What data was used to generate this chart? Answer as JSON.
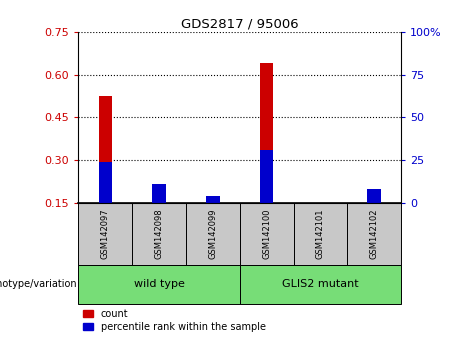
{
  "title": "GDS2817 / 95006",
  "samples": [
    "GSM142097",
    "GSM142098",
    "GSM142099",
    "GSM142100",
    "GSM142101",
    "GSM142102"
  ],
  "groups": [
    {
      "label": "wild type",
      "indices": [
        0,
        1,
        2
      ]
    },
    {
      "label": "GLIS2 mutant",
      "indices": [
        3,
        4,
        5
      ]
    }
  ],
  "red_values": [
    0.525,
    0.195,
    0.155,
    0.64,
    0.15,
    0.19
  ],
  "blue_values": [
    0.295,
    0.215,
    0.175,
    0.335,
    0.15,
    0.2
  ],
  "ylim_left": [
    0.15,
    0.75
  ],
  "yticks_left": [
    0.15,
    0.3,
    0.45,
    0.6,
    0.75
  ],
  "ylim_right": [
    0,
    100
  ],
  "yticks_right": [
    0,
    25,
    50,
    75,
    100
  ],
  "bar_width": 0.25,
  "red_color": "#CC0000",
  "blue_color": "#0000CC",
  "group_label": "genotype/variation",
  "legend_red": "count",
  "legend_blue": "percentile rank within the sample",
  "sample_bg": "#C8C8C8",
  "group_bg": "#77DD77",
  "plot_bg": "#FFFFFF"
}
